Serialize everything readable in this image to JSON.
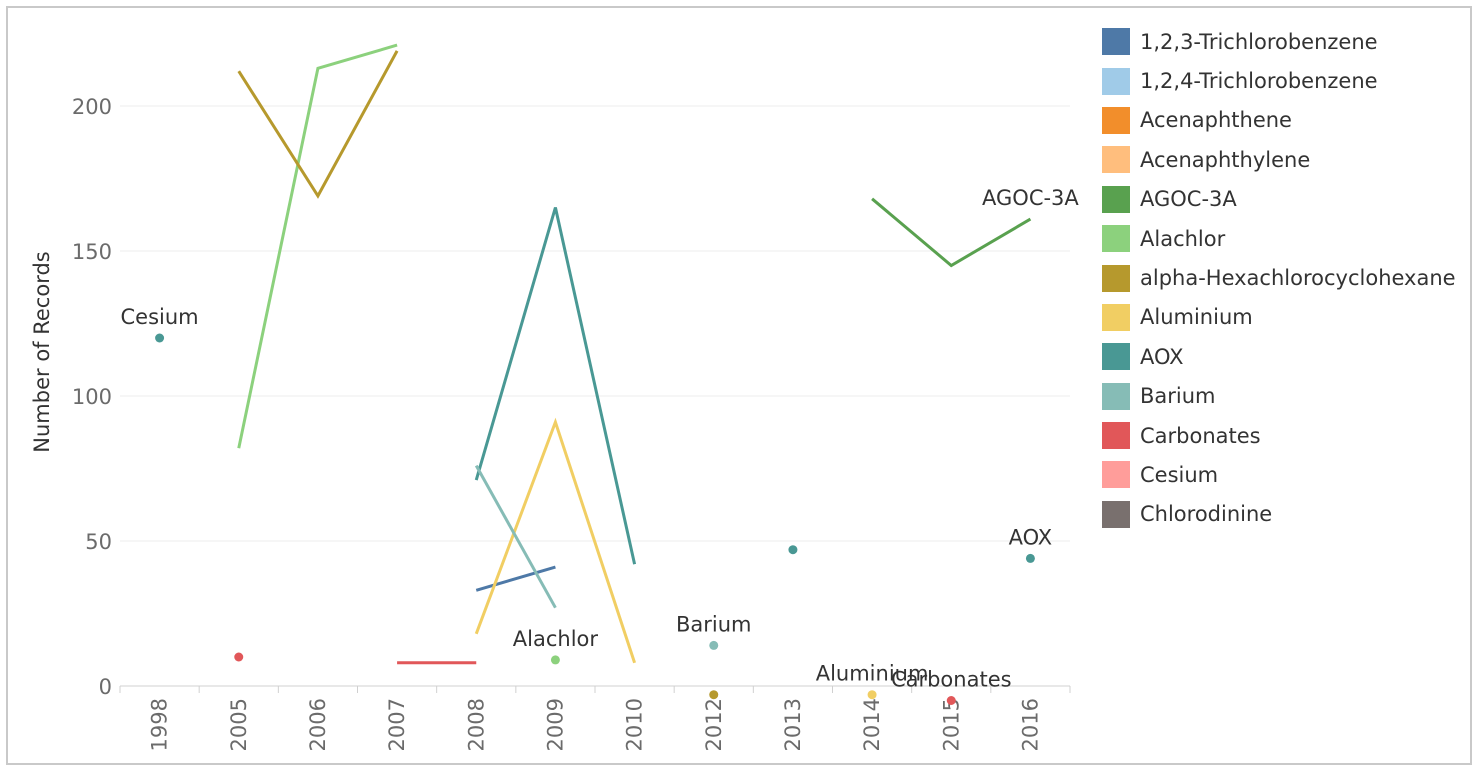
{
  "chart_data": {
    "type": "line",
    "xlabel": "",
    "ylabel": "Number of Records",
    "categories": [
      "1998",
      "2005",
      "2006",
      "2007",
      "2008",
      "2009",
      "2010",
      "2012",
      "2013",
      "2014",
      "2015",
      "2016"
    ],
    "y_ticks": [
      0,
      50,
      100,
      150,
      200
    ],
    "ylim": [
      -6,
      224
    ],
    "grid": "horizontal",
    "legend_position": "right",
    "series": [
      {
        "name": "1,2,3-Trichlorobenzene",
        "color": "#4e79a7",
        "points": [
          [
            "2008",
            33
          ],
          [
            "2009",
            41
          ]
        ]
      },
      {
        "name": "1,2,4-Trichlorobenzene",
        "color": "#a0cbe8",
        "points": []
      },
      {
        "name": "Acenaphthene",
        "color": "#f28e2b",
        "points": []
      },
      {
        "name": "Acenaphthylene",
        "color": "#ffbe7d",
        "points": []
      },
      {
        "name": "AGOC-3A",
        "color": "#59a14f",
        "points": [
          [
            "2014",
            168
          ],
          [
            "2015",
            145
          ],
          [
            "2016",
            161
          ]
        ]
      },
      {
        "name": "Alachlor",
        "color": "#8cd17d",
        "points": [
          [
            "2005",
            82
          ],
          [
            "2006",
            213
          ],
          [
            "2007",
            221
          ],
          [
            "2009",
            9
          ]
        ]
      },
      {
        "name": "alpha-Hexachlorocyclohexane",
        "color": "#b6992d",
        "points": [
          [
            "2005",
            212
          ],
          [
            "2006",
            169
          ],
          [
            "2007",
            219
          ],
          [
            "2012",
            -3
          ]
        ]
      },
      {
        "name": "Aluminium",
        "color": "#f1ce63",
        "points": [
          [
            "2008",
            18
          ],
          [
            "2009",
            91
          ],
          [
            "2010",
            8
          ],
          [
            "2014",
            -3
          ]
        ]
      },
      {
        "name": "AOX",
        "color": "#499894",
        "points": [
          [
            "1998",
            120
          ],
          [
            "2008",
            71
          ],
          [
            "2009",
            165
          ],
          [
            "2010",
            42
          ],
          [
            "2013",
            47
          ],
          [
            "2016",
            44
          ]
        ]
      },
      {
        "name": "Barium",
        "color": "#86bcb6",
        "points": [
          [
            "2008",
            76
          ],
          [
            "2009",
            27
          ],
          [
            "2012",
            14
          ]
        ]
      },
      {
        "name": "Carbonates",
        "color": "#e15759",
        "points": [
          [
            "2005",
            10
          ],
          [
            "2007",
            8
          ],
          [
            "2008",
            8
          ],
          [
            "2015",
            -5
          ]
        ]
      },
      {
        "name": "Cesium",
        "color": "#ff9d9a",
        "points": []
      },
      {
        "name": "Chlorodinine",
        "color": "#79706e",
        "points": []
      }
    ],
    "annotations": [
      {
        "text": "Cesium",
        "x": "1998",
        "y": 120
      },
      {
        "text": "AGOC-3A",
        "x": "2016",
        "y": 161
      },
      {
        "text": "Alachlor",
        "x": "2009",
        "y": 9
      },
      {
        "text": "Barium",
        "x": "2012",
        "y": 14
      },
      {
        "text": "AOX",
        "x": "2016",
        "y": 44
      },
      {
        "text": "Aluminium",
        "x": "2014",
        "y": -3
      },
      {
        "text": "Carbonates",
        "x": "2015",
        "y": -5
      }
    ]
  }
}
